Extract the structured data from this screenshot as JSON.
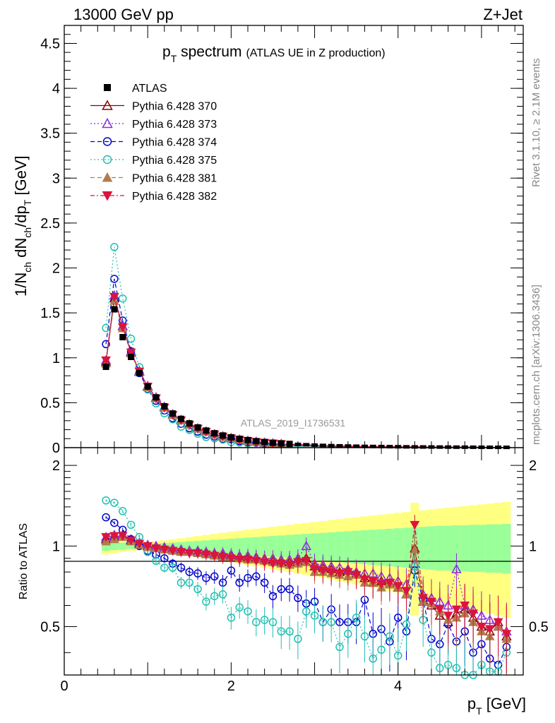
{
  "header": {
    "energy": "13000 GeV pp",
    "process": "Z+Jet"
  },
  "side": {
    "rivet": "Rivet 3.1.10, ≥ 2.1M events",
    "mcplots": "mcplots.cern.ch [arXiv:1306.3436]"
  },
  "colors": {
    "atlas": "#000000",
    "p370": "#8b0000",
    "p373": "#8a2be2",
    "p374": "#0000cd",
    "p375": "#20c0b0",
    "p381": "#b07c4e",
    "p382": "#dc143c",
    "band_inner": "#99ff99",
    "band_outer": "#ffff80"
  },
  "chart_data": {
    "type": "line",
    "title_main": "p",
    "title_sub": "T",
    "title_rest": " spectrum",
    "title_small": "(ATLAS UE in Z production)",
    "watermark": "ATLAS_2019_I1736531",
    "xlabel_main": "p",
    "xlabel_sub": "T",
    "xlabel_rest": " [GeV]",
    "ylabel": "1/N_ch dN_ch/dp_T [GeV]",
    "ylabel_parts": [
      "1/N",
      "ch",
      " dN",
      "ch",
      "/dp",
      "T",
      " [GeV]"
    ],
    "ratio_ylabel": "Ratio to ATLAS",
    "xlim": [
      0,
      5.5
    ],
    "ylim": [
      0,
      4.7
    ],
    "ratio_ylim": [
      0.33,
      2.33
    ],
    "xticks": [
      "0",
      "2",
      "4"
    ],
    "yticks": [
      "0",
      "0.5",
      "1",
      "1.5",
      "2",
      "2.5",
      "3",
      "3.5",
      "4",
      "4.5"
    ],
    "ratio_yticks": [
      "0.5",
      "1",
      "2"
    ],
    "x": [
      0.5,
      0.6,
      0.7,
      0.8,
      0.9,
      1.0,
      1.1,
      1.2,
      1.3,
      1.4,
      1.5,
      1.6,
      1.7,
      1.8,
      1.9,
      2.0,
      2.1,
      2.2,
      2.3,
      2.4,
      2.5,
      2.6,
      2.7,
      2.8,
      2.9,
      3.0,
      3.1,
      3.2,
      3.3,
      3.4,
      3.5,
      3.6,
      3.7,
      3.8,
      3.9,
      4.0,
      4.1,
      4.2,
      4.3,
      4.4,
      4.5,
      4.6,
      4.7,
      4.8,
      4.9,
      5.0,
      5.1,
      5.2,
      5.3
    ],
    "atlas": [
      0.9,
      1.54,
      1.23,
      1.01,
      0.83,
      0.68,
      0.56,
      0.46,
      0.38,
      0.32,
      0.27,
      0.225,
      0.19,
      0.16,
      0.135,
      0.115,
      0.098,
      0.084,
      0.072,
      0.062,
      0.054,
      0.047,
      0.041,
      0.036,
      0.032,
      0.028,
      0.025,
      0.022,
      0.02,
      0.018,
      0.016,
      0.014,
      0.013,
      0.012,
      0.011,
      0.01,
      0.009,
      0.008,
      0.0075,
      0.007,
      0.0065,
      0.006,
      0.0055,
      0.005,
      0.0046,
      0.0042,
      0.0038,
      0.0035,
      0.0032
    ],
    "band_inner": [
      0.04,
      0.035,
      0.03,
      0.025,
      0.02,
      0.02,
      0.02,
      0.025,
      0.03,
      0.035,
      0.04,
      0.045,
      0.05,
      0.055,
      0.06,
      0.065,
      0.07,
      0.075,
      0.08,
      0.085,
      0.09,
      0.095,
      0.1,
      0.105,
      0.11,
      0.115,
      0.12,
      0.125,
      0.13,
      0.135,
      0.14,
      0.145,
      0.15,
      0.155,
      0.16,
      0.165,
      0.17,
      0.175,
      0.18,
      0.185,
      0.19,
      0.19,
      0.195,
      0.195,
      0.2,
      0.2,
      0.205,
      0.205,
      0.21
    ],
    "band_outer": [
      0.07,
      0.06,
      0.05,
      0.04,
      0.035,
      0.035,
      0.04,
      0.05,
      0.06,
      0.07,
      0.08,
      0.09,
      0.1,
      0.11,
      0.12,
      0.13,
      0.14,
      0.15,
      0.16,
      0.17,
      0.18,
      0.19,
      0.2,
      0.21,
      0.22,
      0.23,
      0.24,
      0.25,
      0.26,
      0.27,
      0.28,
      0.29,
      0.3,
      0.31,
      0.32,
      0.33,
      0.34,
      0.45,
      0.36,
      0.37,
      0.38,
      0.39,
      0.4,
      0.41,
      0.42,
      0.43,
      0.44,
      0.45,
      0.46
    ],
    "series": [
      {
        "name": "Pythia 6.428 370",
        "color_key": "p370",
        "marker": "tri-up-open",
        "dash": "",
        "ratio": [
          1.06,
          1.08,
          1.1,
          1.05,
          1.02,
          1.0,
          0.99,
          0.98,
          0.97,
          0.96,
          0.96,
          0.95,
          0.94,
          0.93,
          0.92,
          0.92,
          0.91,
          0.9,
          0.9,
          0.89,
          0.88,
          0.87,
          0.87,
          0.88,
          0.9,
          0.84,
          0.83,
          0.82,
          0.8,
          0.81,
          0.79,
          0.76,
          0.73,
          0.74,
          0.72,
          0.7,
          0.66,
          0.98,
          0.62,
          0.6,
          0.55,
          0.52,
          0.56,
          0.58,
          0.54,
          0.5,
          0.48,
          0.52,
          0.46
        ]
      },
      {
        "name": "Pythia 6.428 373",
        "color_key": "p373",
        "marker": "tri-up-open",
        "dash": "2,3",
        "ratio": [
          1.08,
          1.1,
          1.1,
          1.06,
          1.03,
          1.01,
          1.0,
          0.99,
          0.98,
          0.97,
          0.96,
          0.96,
          0.95,
          0.94,
          0.94,
          0.93,
          0.92,
          0.92,
          0.91,
          0.9,
          0.9,
          0.89,
          0.89,
          0.9,
          1.0,
          0.86,
          0.85,
          0.84,
          0.83,
          0.82,
          0.8,
          0.79,
          0.79,
          0.77,
          0.76,
          0.74,
          0.72,
          0.86,
          0.66,
          0.64,
          0.62,
          0.6,
          0.82,
          0.6,
          0.58,
          0.55,
          0.53,
          0.5,
          0.48
        ]
      },
      {
        "name": "Pythia 6.428 374",
        "color_key": "p374",
        "marker": "circle-open",
        "dash": "6,4",
        "ratio": [
          1.28,
          1.22,
          1.15,
          1.06,
          1.0,
          0.96,
          0.93,
          0.9,
          0.86,
          0.83,
          0.8,
          0.79,
          0.76,
          0.77,
          0.73,
          0.81,
          0.73,
          0.76,
          0.77,
          0.73,
          0.65,
          0.69,
          0.69,
          0.64,
          0.61,
          0.62,
          0.52,
          0.58,
          0.52,
          0.52,
          0.52,
          0.63,
          0.47,
          0.49,
          0.44,
          0.54,
          0.48,
          0.81,
          0.63,
          0.45,
          0.43,
          0.51,
          0.44,
          0.48,
          0.4,
          0.43,
          0.38,
          0.36,
          0.42
        ]
      },
      {
        "name": "Pythia 6.428 375",
        "color_key": "p375",
        "marker": "circle-open",
        "dash": "2,3",
        "ratio": [
          1.48,
          1.45,
          1.35,
          1.2,
          1.08,
          0.95,
          0.88,
          0.83,
          0.83,
          0.73,
          0.73,
          0.69,
          0.62,
          0.65,
          0.66,
          0.54,
          0.59,
          0.57,
          0.52,
          0.53,
          0.52,
          0.48,
          0.48,
          0.45,
          0.57,
          0.55,
          0.52,
          0.52,
          0.42,
          0.47,
          0.54,
          0.46,
          0.38,
          0.41,
          0.46,
          0.39,
          0.51,
          0.84,
          0.53,
          0.4,
          0.35,
          0.36,
          0.35,
          0.32,
          0.33,
          0.36,
          0.34,
          0.34,
          0.4
        ]
      },
      {
        "name": "Pythia 6.428 381",
        "color_key": "p381",
        "marker": "tri-up-full",
        "dash": "6,4",
        "ratio": [
          1.04,
          1.06,
          1.08,
          1.04,
          1.01,
          0.99,
          0.98,
          0.97,
          0.96,
          0.95,
          0.95,
          0.94,
          0.93,
          0.92,
          0.91,
          0.91,
          0.9,
          0.89,
          0.89,
          0.88,
          0.87,
          0.86,
          0.85,
          0.86,
          0.87,
          0.8,
          0.8,
          0.79,
          0.78,
          0.77,
          0.78,
          0.73,
          0.73,
          0.7,
          0.72,
          0.7,
          0.66,
          0.97,
          0.62,
          0.61,
          0.57,
          0.53,
          0.54,
          0.56,
          0.52,
          0.48,
          0.46,
          0.5,
          0.45
        ]
      },
      {
        "name": "Pythia 6.428 382",
        "color_key": "p382",
        "marker": "tri-down-full",
        "dash": "6,3,2,3",
        "ratio": [
          1.08,
          1.09,
          1.09,
          1.05,
          1.02,
          1.0,
          0.98,
          0.97,
          0.96,
          0.95,
          0.94,
          0.94,
          0.93,
          0.92,
          0.91,
          0.9,
          0.89,
          0.89,
          0.88,
          0.87,
          0.86,
          0.86,
          0.85,
          0.87,
          0.88,
          0.82,
          0.81,
          0.8,
          0.79,
          0.8,
          0.78,
          0.75,
          0.74,
          0.72,
          0.73,
          0.71,
          0.68,
          1.2,
          0.64,
          0.62,
          0.58,
          0.55,
          0.58,
          0.6,
          0.56,
          0.5,
          0.49,
          0.52,
          0.47
        ]
      }
    ],
    "legend": [
      {
        "label": "ATLAS",
        "color_key": "atlas",
        "marker": "square-full",
        "dash": "none"
      },
      {
        "label": "Pythia 6.428 370",
        "color_key": "p370",
        "marker": "tri-up-open",
        "dash": ""
      },
      {
        "label": "Pythia 6.428 373",
        "color_key": "p373",
        "marker": "tri-up-open",
        "dash": "2,3"
      },
      {
        "label": "Pythia 6.428 374",
        "color_key": "p374",
        "marker": "circle-open",
        "dash": "6,4"
      },
      {
        "label": "Pythia 6.428 375",
        "color_key": "p375",
        "marker": "circle-open",
        "dash": "2,3"
      },
      {
        "label": "Pythia 6.428 381",
        "color_key": "p381",
        "marker": "tri-up-full",
        "dash": "6,4"
      },
      {
        "label": "Pythia 6.428 382",
        "color_key": "p382",
        "marker": "tri-down-full",
        "dash": "6,3,2,3"
      }
    ]
  }
}
